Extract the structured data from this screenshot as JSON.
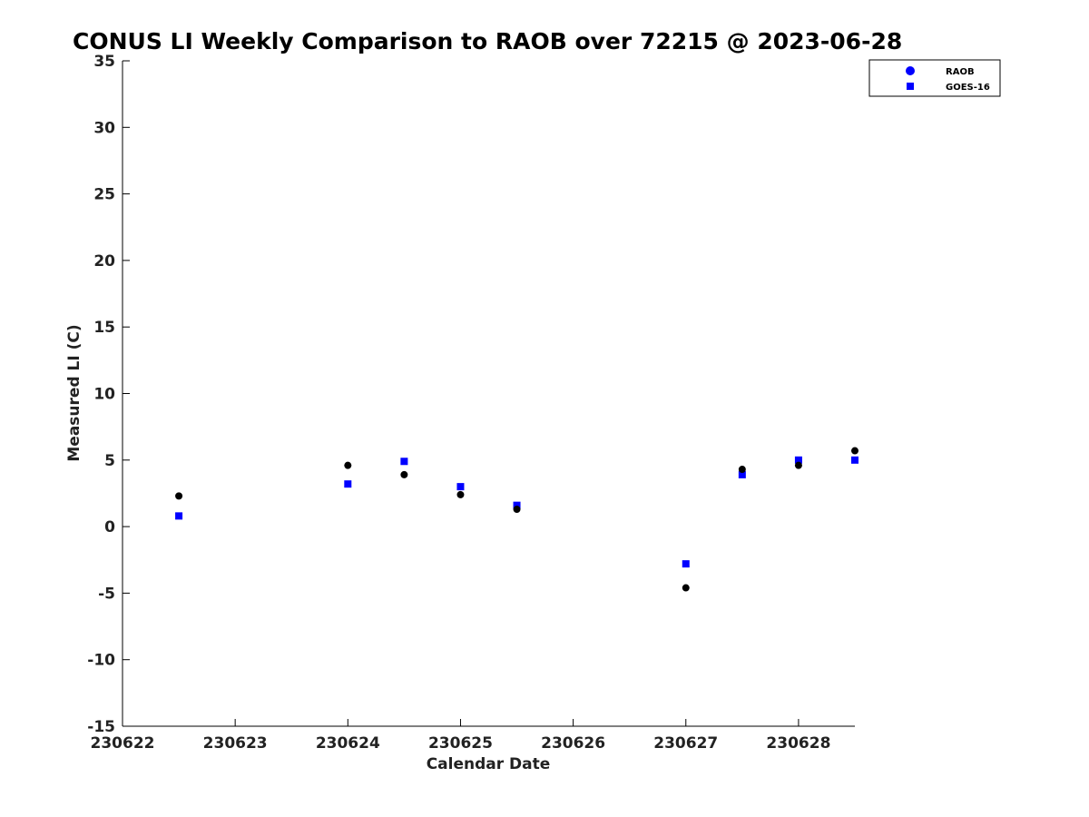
{
  "chart_data": {
    "type": "scatter",
    "title": "CONUS LI Weekly Comparison to RAOB over 72215 @ 2023-06-28",
    "xlabel": "Calendar Date",
    "ylabel": "Measured LI (C)",
    "xlim": [
      230622,
      230628.5
    ],
    "ylim": [
      -15,
      35
    ],
    "xticks": [
      "230622",
      "230623",
      "230624",
      "230625",
      "230626",
      "230627",
      "230628"
    ],
    "yticks": [
      "-15",
      "-10",
      "-5",
      "0",
      "5",
      "10",
      "15",
      "20",
      "25",
      "30",
      "35"
    ],
    "grid": false,
    "legend_position": "top-right",
    "legend": [
      "RAOB",
      "GOES-16"
    ],
    "series": [
      {
        "name": "RAOB",
        "marker": "circle",
        "legend_color": "#0000ff",
        "color": "#000000",
        "points": [
          {
            "x": 230622.5,
            "y": 2.3
          },
          {
            "x": 230624.0,
            "y": 4.6
          },
          {
            "x": 230624.5,
            "y": 3.9
          },
          {
            "x": 230625.0,
            "y": 2.4
          },
          {
            "x": 230625.5,
            "y": 1.3
          },
          {
            "x": 230627.0,
            "y": -4.6
          },
          {
            "x": 230627.5,
            "y": 4.3
          },
          {
            "x": 230628.0,
            "y": 4.6
          },
          {
            "x": 230628.5,
            "y": 5.7
          }
        ]
      },
      {
        "name": "GOES-16",
        "marker": "square",
        "legend_color": "#0000ff",
        "color": "#0000ff",
        "points": [
          {
            "x": 230622.5,
            "y": 0.8
          },
          {
            "x": 230624.0,
            "y": 3.2
          },
          {
            "x": 230624.5,
            "y": 4.9
          },
          {
            "x": 230625.0,
            "y": 3.0
          },
          {
            "x": 230625.5,
            "y": 1.6
          },
          {
            "x": 230627.0,
            "y": -2.8
          },
          {
            "x": 230627.5,
            "y": 3.9
          },
          {
            "x": 230628.0,
            "y": 5.0
          },
          {
            "x": 230628.5,
            "y": 5.0
          }
        ]
      }
    ]
  }
}
